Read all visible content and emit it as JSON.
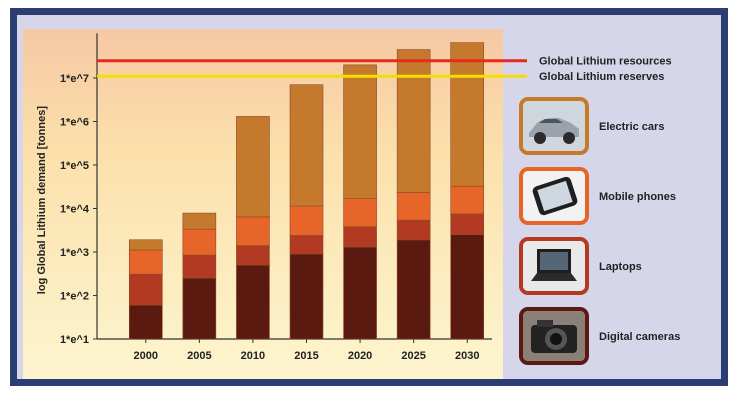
{
  "chart_data": {
    "type": "bar",
    "stacked": true,
    "log_scale": true,
    "categories": [
      "2000",
      "2005",
      "2010",
      "2015",
      "2020",
      "2025",
      "2030"
    ],
    "ylabel": "log Global Lithium demand [tonnes]",
    "y_tick_labels": [
      "1*e^1",
      "1*e^2",
      "1*e^3",
      "1*e^4",
      "1*e^5",
      "1*e^6",
      "1*e^7"
    ],
    "y_tick_values": [
      10,
      100,
      1000,
      10000,
      100000,
      1000000,
      10000000
    ],
    "ylim": [
      10,
      70000000
    ],
    "series": [
      {
        "name": "Digital cameras",
        "color": "#5a1a10",
        "values": [
          60,
          250,
          500,
          900,
          1300,
          1900,
          2500
        ]
      },
      {
        "name": "Laptops",
        "color": "#b23a22",
        "values": [
          250,
          600,
          900,
          1500,
          2500,
          3500,
          5000
        ]
      },
      {
        "name": "Mobile phones",
        "color": "#e8652a",
        "values": [
          800,
          2500,
          5000,
          9000,
          13000,
          18000,
          25000
        ]
      },
      {
        "name": "Electric cars",
        "color": "#c5792d",
        "values": [
          800,
          4500,
          1300000,
          7000000,
          20000000,
          45000000,
          65000000
        ]
      }
    ],
    "reference_lines": [
      {
        "label": "Global Lithium resources",
        "value": 25000000,
        "color": "#e52a1e"
      },
      {
        "label": "Global Lithium reserves",
        "value": 11000000,
        "color": "#f2df00"
      }
    ],
    "legend_position": "right",
    "grid": false
  }
}
